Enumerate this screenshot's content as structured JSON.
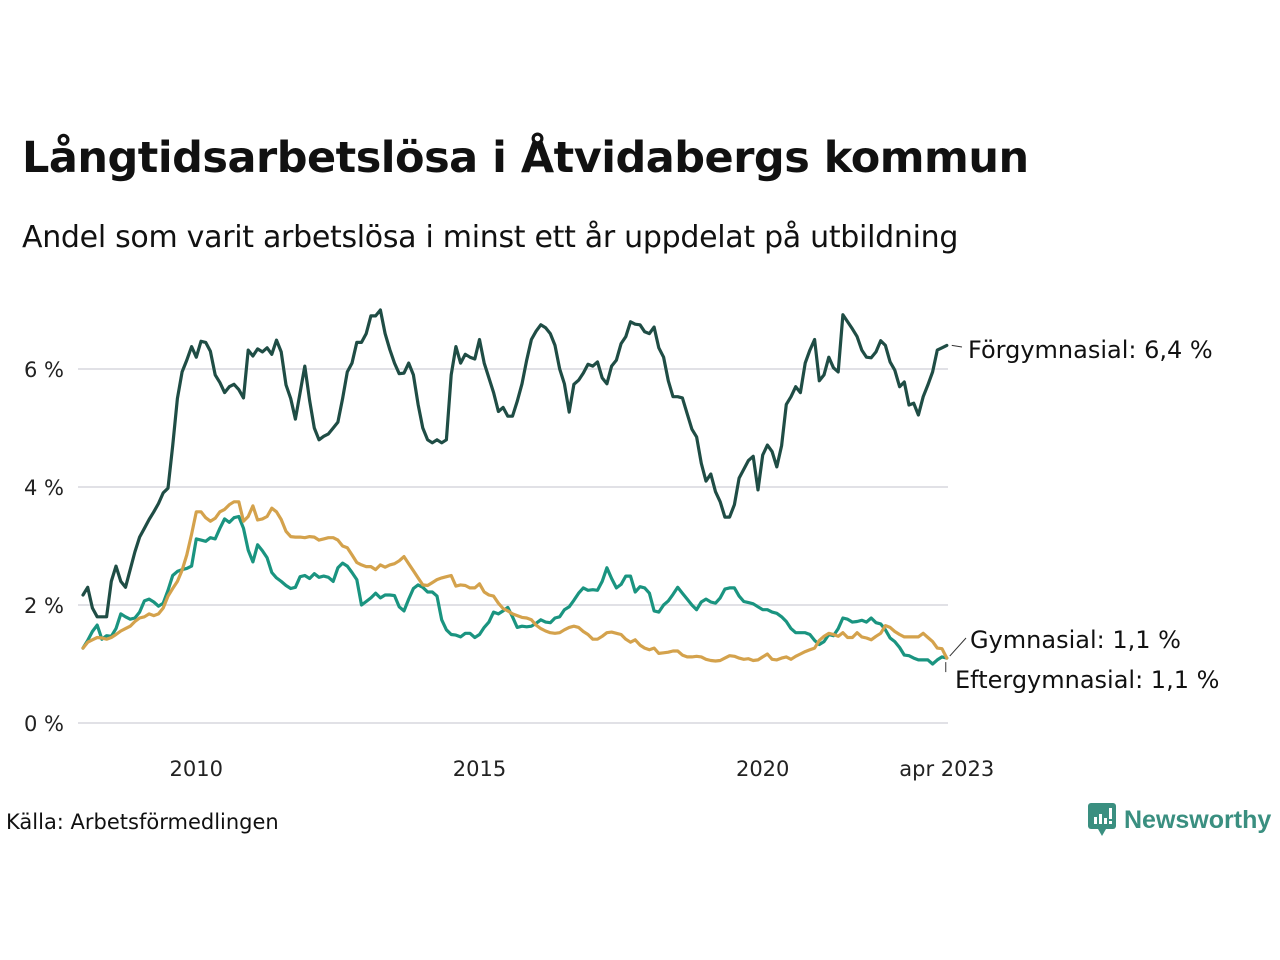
{
  "title": "Långtidsarbetslösa i Åtvidabergs kommun",
  "subtitle": "Andel som varit arbetslösa i minst ett år uppdelat på utbildning",
  "source": "Källa: Arbetsförmedlingen",
  "brand": {
    "name": "Newsworthy",
    "color": "#3a8f80",
    "icon": "newsworthy-logo-icon"
  },
  "chart_data": {
    "type": "line",
    "title": "Långtidsarbetslösa i Åtvidabergs kommun",
    "subtitle": "Andel som varit arbetslösa i minst ett år uppdelat på utbildning",
    "xlabel": "",
    "ylabel": "",
    "x_start": "jan 2008",
    "x_end": "apr 2023",
    "x_frequency": "monthly",
    "x_ticks": [
      {
        "label": "2010",
        "month_index": 24
      },
      {
        "label": "2015",
        "month_index": 84
      },
      {
        "label": "2020",
        "month_index": 144
      },
      {
        "label": "apr 2023",
        "month_index": 183
      }
    ],
    "y_ticks": [
      {
        "label": "0 %",
        "value": 0
      },
      {
        "label": "2 %",
        "value": 2
      },
      {
        "label": "4 %",
        "value": 4
      },
      {
        "label": "6 %",
        "value": 6
      }
    ],
    "ylim": [
      0,
      7.2
    ],
    "grid": true,
    "legend": "direct labels at line ends (right)",
    "series": [
      {
        "name": "Förgymnasial",
        "end_label": "Förgymnasial: 6,4 %",
        "color": "#1f4d45",
        "values": [
          2.17,
          2.3,
          1.95,
          1.8,
          1.8,
          1.8,
          2.4,
          2.66,
          2.4,
          2.3,
          2.6,
          2.9,
          3.15,
          3.3,
          3.45,
          3.58,
          3.72,
          3.9,
          3.98,
          4.7,
          5.5,
          5.95,
          6.15,
          6.38,
          6.2,
          6.47,
          6.45,
          6.3,
          5.9,
          5.77,
          5.6,
          5.7,
          5.74,
          5.65,
          5.51,
          6.32,
          6.22,
          6.34,
          6.29,
          6.36,
          6.25,
          6.49,
          6.29,
          5.73,
          5.5,
          5.15,
          5.6,
          6.05,
          5.47,
          5.0,
          4.8,
          4.86,
          4.9,
          5.0,
          5.1,
          5.5,
          5.95,
          6.1,
          6.45,
          6.45,
          6.6,
          6.9,
          6.9,
          7.0,
          6.6,
          6.33,
          6.1,
          5.92,
          5.93,
          6.1,
          5.9,
          5.4,
          5.0,
          4.8,
          4.75,
          4.8,
          4.75,
          4.8,
          5.9,
          6.38,
          6.1,
          6.25,
          6.2,
          6.17,
          6.5,
          6.1,
          5.85,
          5.6,
          5.28,
          5.35,
          5.2,
          5.2,
          5.45,
          5.75,
          6.15,
          6.5,
          6.64,
          6.75,
          6.7,
          6.6,
          6.4,
          6.0,
          5.75,
          5.27,
          5.74,
          5.81,
          5.93,
          6.08,
          6.05,
          6.12,
          5.85,
          5.75,
          6.05,
          6.15,
          6.43,
          6.55,
          6.8,
          6.76,
          6.75,
          6.63,
          6.6,
          6.71,
          6.36,
          6.2,
          5.8,
          5.53,
          5.53,
          5.51,
          5.24,
          4.98,
          4.85,
          4.4,
          4.1,
          4.22,
          3.92,
          3.75,
          3.49,
          3.49,
          3.7,
          4.15,
          4.3,
          4.45,
          4.52,
          3.95,
          4.54,
          4.71,
          4.6,
          4.34,
          4.7,
          5.4,
          5.53,
          5.7,
          5.6,
          6.1,
          6.32,
          6.5,
          5.8,
          5.9,
          6.2,
          6.02,
          5.95,
          6.92,
          6.8,
          6.68,
          6.55,
          6.32,
          6.2,
          6.19,
          6.29,
          6.48,
          6.4,
          6.12,
          5.98,
          5.7,
          5.78,
          5.39,
          5.42,
          5.22,
          5.53,
          5.73,
          5.95,
          6.32,
          6.36,
          6.4
        ]
      },
      {
        "name": "Gymnasial",
        "end_label": "Gymnasial: 1,1 %",
        "color": "#d4a24c",
        "values": [
          1.27,
          1.37,
          1.41,
          1.45,
          1.44,
          1.42,
          1.45,
          1.5,
          1.56,
          1.6,
          1.64,
          1.72,
          1.78,
          1.8,
          1.85,
          1.82,
          1.85,
          1.95,
          2.15,
          2.28,
          2.4,
          2.59,
          2.85,
          3.2,
          3.58,
          3.58,
          3.48,
          3.42,
          3.47,
          3.58,
          3.62,
          3.7,
          3.75,
          3.75,
          3.42,
          3.5,
          3.68,
          3.44,
          3.46,
          3.5,
          3.64,
          3.58,
          3.45,
          3.25,
          3.16,
          3.15,
          3.15,
          3.14,
          3.16,
          3.15,
          3.1,
          3.12,
          3.14,
          3.14,
          3.1,
          3.0,
          2.97,
          2.85,
          2.72,
          2.68,
          2.65,
          2.65,
          2.6,
          2.68,
          2.64,
          2.68,
          2.7,
          2.75,
          2.82,
          2.7,
          2.58,
          2.46,
          2.34,
          2.33,
          2.38,
          2.43,
          2.46,
          2.48,
          2.5,
          2.32,
          2.34,
          2.33,
          2.29,
          2.29,
          2.36,
          2.22,
          2.17,
          2.15,
          2.03,
          1.94,
          1.9,
          1.85,
          1.82,
          1.79,
          1.78,
          1.75,
          1.66,
          1.6,
          1.56,
          1.53,
          1.52,
          1.53,
          1.58,
          1.62,
          1.64,
          1.62,
          1.55,
          1.5,
          1.42,
          1.42,
          1.47,
          1.53,
          1.54,
          1.52,
          1.5,
          1.42,
          1.37,
          1.41,
          1.32,
          1.27,
          1.24,
          1.27,
          1.18,
          1.19,
          1.2,
          1.22,
          1.22,
          1.15,
          1.12,
          1.12,
          1.13,
          1.12,
          1.08,
          1.06,
          1.05,
          1.06,
          1.1,
          1.14,
          1.13,
          1.1,
          1.08,
          1.09,
          1.06,
          1.07,
          1.12,
          1.17,
          1.08,
          1.07,
          1.1,
          1.12,
          1.08,
          1.13,
          1.17,
          1.21,
          1.24,
          1.27,
          1.4,
          1.47,
          1.52,
          1.5,
          1.47,
          1.53,
          1.45,
          1.45,
          1.53,
          1.46,
          1.44,
          1.41,
          1.47,
          1.52,
          1.65,
          1.62,
          1.55,
          1.5,
          1.46,
          1.46,
          1.46,
          1.46,
          1.52,
          1.45,
          1.38,
          1.27,
          1.26,
          1.1
        ]
      },
      {
        "name": "Eftergymnasial",
        "end_label": "Eftergymnasial: 1,1 %",
        "color": "#1a9480",
        "values": [
          1.27,
          1.4,
          1.55,
          1.66,
          1.42,
          1.48,
          1.47,
          1.6,
          1.85,
          1.8,
          1.76,
          1.78,
          1.88,
          2.07,
          2.1,
          2.05,
          1.98,
          2.03,
          2.25,
          2.5,
          2.57,
          2.6,
          2.62,
          2.66,
          3.12,
          3.1,
          3.08,
          3.14,
          3.12,
          3.3,
          3.46,
          3.4,
          3.48,
          3.5,
          3.3,
          2.93,
          2.73,
          3.02,
          2.92,
          2.8,
          2.55,
          2.46,
          2.4,
          2.33,
          2.28,
          2.3,
          2.48,
          2.5,
          2.45,
          2.53,
          2.47,
          2.49,
          2.47,
          2.4,
          2.63,
          2.71,
          2.66,
          2.55,
          2.43,
          2.0,
          2.06,
          2.12,
          2.2,
          2.12,
          2.17,
          2.17,
          2.16,
          1.97,
          1.9,
          2.1,
          2.28,
          2.34,
          2.3,
          2.22,
          2.22,
          2.15,
          1.75,
          1.58,
          1.5,
          1.49,
          1.46,
          1.52,
          1.52,
          1.45,
          1.5,
          1.62,
          1.71,
          1.88,
          1.85,
          1.9,
          1.96,
          1.8,
          1.62,
          1.64,
          1.63,
          1.64,
          1.69,
          1.75,
          1.71,
          1.7,
          1.78,
          1.8,
          1.92,
          1.97,
          2.08,
          2.2,
          2.29,
          2.25,
          2.26,
          2.25,
          2.4,
          2.63,
          2.45,
          2.29,
          2.35,
          2.49,
          2.49,
          2.22,
          2.31,
          2.29,
          2.2,
          1.9,
          1.88,
          2.0,
          2.07,
          2.18,
          2.3,
          2.2,
          2.1,
          2.0,
          1.92,
          2.05,
          2.1,
          2.05,
          2.03,
          2.12,
          2.27,
          2.29,
          2.29,
          2.15,
          2.06,
          2.04,
          2.02,
          1.97,
          1.92,
          1.92,
          1.88,
          1.86,
          1.8,
          1.72,
          1.6,
          1.53,
          1.53,
          1.53,
          1.5,
          1.4,
          1.33,
          1.38,
          1.5,
          1.48,
          1.6,
          1.78,
          1.76,
          1.71,
          1.72,
          1.74,
          1.71,
          1.78,
          1.7,
          1.68,
          1.58,
          1.44,
          1.38,
          1.28,
          1.15,
          1.14,
          1.1,
          1.07,
          1.07,
          1.07,
          1.0,
          1.07,
          1.12,
          1.1
        ]
      }
    ]
  }
}
